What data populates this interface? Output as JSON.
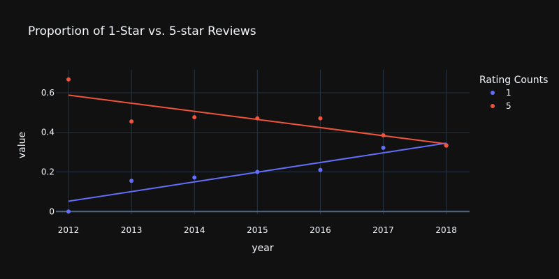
{
  "chart_data": {
    "type": "scatter",
    "title": "Proportion of 1-Star vs. 5-star Reviews",
    "xlabel": "year",
    "ylabel": "value",
    "x": [
      2012,
      2013,
      2014,
      2015,
      2016,
      2017,
      2018
    ],
    "xlim": [
      2011.8,
      2018.37
    ],
    "ylim": [
      -0.013,
      0.716
    ],
    "x_ticks": [
      "2012",
      "2013",
      "2014",
      "2015",
      "2016",
      "2017",
      "2018"
    ],
    "y_ticks": [
      {
        "value": 0,
        "label": "0"
      },
      {
        "value": 0.2,
        "label": "0.2"
      },
      {
        "value": 0.4,
        "label": "0.4"
      },
      {
        "value": 0.6,
        "label": "0.6"
      }
    ],
    "grid": true,
    "legend": {
      "title": "Rating Counts",
      "placement": "top-right"
    },
    "series": [
      {
        "name": "1",
        "color": "#636efa",
        "values": [
          0.0,
          0.155,
          0.172,
          0.2,
          0.21,
          0.322,
          0.335
        ],
        "trendline": [
          0.052,
          0.3455
        ]
      },
      {
        "name": "5",
        "color": "#ef553b",
        "values": [
          0.667,
          0.455,
          0.476,
          0.471,
          0.471,
          0.385,
          0.333
        ],
        "trendline": [
          0.588,
          0.342
        ]
      }
    ]
  }
}
